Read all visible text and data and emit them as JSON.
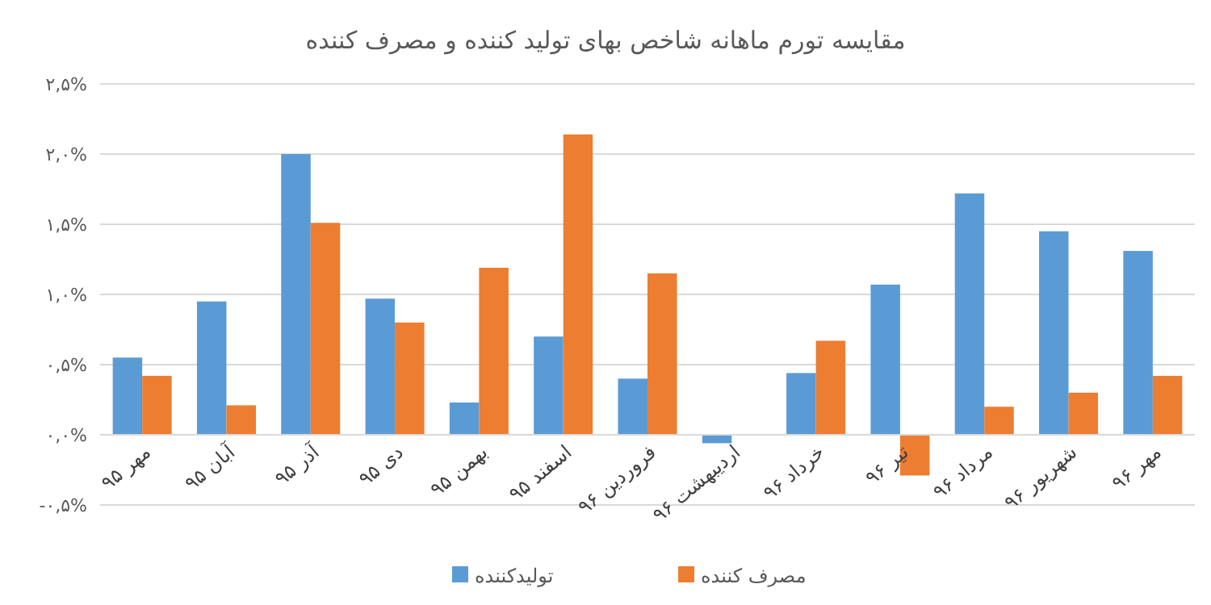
{
  "chart_data": {
    "type": "bar",
    "title": "مقایسه تورم ماهانه شاخص بهای تولید کننده و مصرف کننده",
    "categories": [
      "مهر ۹۵",
      "آبان ۹۵",
      "آذر ۹۵",
      "دی ۹۵",
      "بهمن ۹۵",
      "اسفند ۹۵",
      "فروردین ۹۶",
      "اردیبهشت ۹۶",
      "خرداد ۹۶",
      "تیر ۹۶",
      "مرداد ۹۶",
      "شهریور ۹۶",
      "مهر ۹۶"
    ],
    "series": [
      {
        "name": "تولیدکننده",
        "color": "#5b9bd5",
        "values": [
          0.55,
          0.95,
          2.0,
          0.97,
          0.23,
          0.7,
          0.4,
          -0.06,
          0.44,
          1.07,
          1.72,
          1.45,
          1.31
        ]
      },
      {
        "name": "مصرف کننده",
        "color": "#ed7d31",
        "values": [
          0.42,
          0.21,
          1.51,
          0.8,
          1.19,
          2.14,
          1.15,
          0,
          0.67,
          -0.29,
          0.2,
          0.3,
          0.42
        ]
      }
    ],
    "ylim": [
      -0.5,
      2.5
    ],
    "yticks": [
      {
        "value": -0.5,
        "label": "-۰,۵%"
      },
      {
        "value": 0,
        "label": "۰,۰%"
      },
      {
        "value": 0.5,
        "label": "۰,۵%"
      },
      {
        "value": 1,
        "label": "۱,۰%"
      },
      {
        "value": 1.5,
        "label": "۱,۵%"
      },
      {
        "value": 2,
        "label": "۲,۰%"
      },
      {
        "value": 2.5,
        "label": "۲,۵%"
      }
    ],
    "grid": "y",
    "legend": "bottom"
  }
}
